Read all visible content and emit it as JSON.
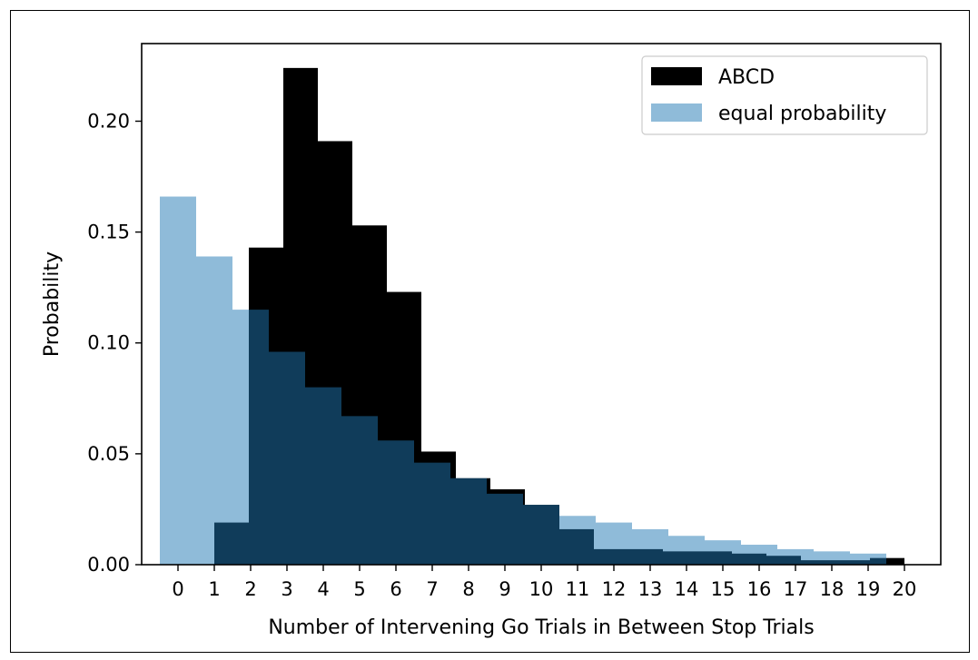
{
  "chart_data": {
    "type": "bar",
    "title": "",
    "xlabel": "Number of Intervening Go Trials in Between Stop Trials",
    "ylabel": "Probability",
    "x_ticks": [
      0,
      1,
      2,
      3,
      4,
      5,
      6,
      7,
      8,
      9,
      10,
      11,
      12,
      13,
      14,
      15,
      16,
      17,
      18,
      19,
      20
    ],
    "y_ticks": [
      "0.00",
      "0.05",
      "0.10",
      "0.15",
      "0.20"
    ],
    "ylim": [
      0,
      0.235
    ],
    "grid": false,
    "legend_position": "top-right",
    "series": [
      {
        "name": "ABCD",
        "color": "#000000",
        "bins": [
          {
            "x0": 1.0,
            "x1": 1.95,
            "value": 0.019
          },
          {
            "x0": 1.95,
            "x1": 2.9,
            "value": 0.143
          },
          {
            "x0": 2.9,
            "x1": 3.85,
            "value": 0.224
          },
          {
            "x0": 3.85,
            "x1": 4.8,
            "value": 0.191
          },
          {
            "x0": 4.8,
            "x1": 5.75,
            "value": 0.153
          },
          {
            "x0": 5.75,
            "x1": 6.7,
            "value": 0.123
          },
          {
            "x0": 6.7,
            "x1": 7.65,
            "value": 0.051
          },
          {
            "x0": 7.65,
            "x1": 8.6,
            "value": 0.039
          },
          {
            "x0": 8.6,
            "x1": 9.55,
            "value": 0.034
          },
          {
            "x0": 9.55,
            "x1": 10.5,
            "value": 0.027
          },
          {
            "x0": 10.5,
            "x1": 11.45,
            "value": 0.016
          },
          {
            "x0": 11.45,
            "x1": 12.4,
            "value": 0.007
          },
          {
            "x0": 12.4,
            "x1": 13.35,
            "value": 0.007
          },
          {
            "x0": 13.35,
            "x1": 14.3,
            "value": 0.006
          },
          {
            "x0": 14.3,
            "x1": 15.25,
            "value": 0.006
          },
          {
            "x0": 15.25,
            "x1": 16.2,
            "value": 0.005
          },
          {
            "x0": 16.2,
            "x1": 17.15,
            "value": 0.004
          },
          {
            "x0": 17.15,
            "x1": 18.1,
            "value": 0.002
          },
          {
            "x0": 18.1,
            "x1": 19.05,
            "value": 0.002
          },
          {
            "x0": 19.05,
            "x1": 20.0,
            "value": 0.003
          }
        ]
      },
      {
        "name": "equal probability",
        "color": "#1f77b4",
        "opacity": 0.5,
        "bins": [
          {
            "x0": -0.5,
            "x1": 0.5,
            "value": 0.166
          },
          {
            "x0": 0.5,
            "x1": 1.5,
            "value": 0.139
          },
          {
            "x0": 1.5,
            "x1": 2.5,
            "value": 0.115
          },
          {
            "x0": 2.5,
            "x1": 3.5,
            "value": 0.096
          },
          {
            "x0": 3.5,
            "x1": 4.5,
            "value": 0.08
          },
          {
            "x0": 4.5,
            "x1": 5.5,
            "value": 0.067
          },
          {
            "x0": 5.5,
            "x1": 6.5,
            "value": 0.056
          },
          {
            "x0": 6.5,
            "x1": 7.5,
            "value": 0.046
          },
          {
            "x0": 7.5,
            "x1": 8.5,
            "value": 0.039
          },
          {
            "x0": 8.5,
            "x1": 9.5,
            "value": 0.032
          },
          {
            "x0": 9.5,
            "x1": 10.5,
            "value": 0.027
          },
          {
            "x0": 10.5,
            "x1": 11.5,
            "value": 0.022
          },
          {
            "x0": 11.5,
            "x1": 12.5,
            "value": 0.019
          },
          {
            "x0": 12.5,
            "x1": 13.5,
            "value": 0.016
          },
          {
            "x0": 13.5,
            "x1": 14.5,
            "value": 0.013
          },
          {
            "x0": 14.5,
            "x1": 15.5,
            "value": 0.011
          },
          {
            "x0": 15.5,
            "x1": 16.5,
            "value": 0.009
          },
          {
            "x0": 16.5,
            "x1": 17.5,
            "value": 0.007
          },
          {
            "x0": 17.5,
            "x1": 18.5,
            "value": 0.006
          },
          {
            "x0": 18.5,
            "x1": 19.5,
            "value": 0.005
          }
        ]
      }
    ]
  }
}
